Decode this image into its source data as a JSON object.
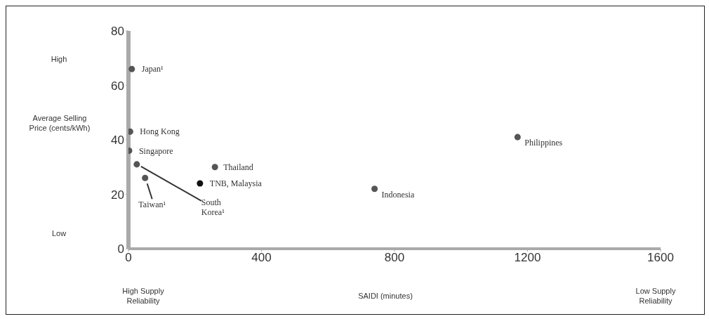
{
  "chart_data": {
    "type": "scatter",
    "xlabel": "SAIDI (minutes)",
    "ylabel": "Average Selling Price (cents/kWh)",
    "x": [
      10,
      5,
      2,
      25,
      50,
      260,
      215,
      740,
      1170
    ],
    "values": [
      66,
      43,
      36,
      31,
      26,
      30,
      24,
      22,
      41
    ],
    "colors": [
      "#555555",
      "#555555",
      "#555555",
      "#555555",
      "#555555",
      "#555555",
      "#111111",
      "#555555",
      "#555555"
    ],
    "xlim": [
      0,
      1600
    ],
    "xticks": [
      0,
      400,
      800,
      1200,
      1600
    ],
    "ylim": [
      0,
      80
    ],
    "yticks": [
      0,
      20,
      40,
      60,
      80
    ],
    "grid": false,
    "legend": false,
    "marker": "circle",
    "annotations": [
      {
        "text": "Japan¹",
        "x": 10,
        "y": 66
      },
      {
        "text": "Hong Kong",
        "x": 5,
        "y": 43
      },
      {
        "text": "Singapore",
        "x": 2,
        "y": 36
      },
      {
        "text": "South Korea¹",
        "x": 25,
        "y": 31
      },
      {
        "text": "Taiwan¹",
        "x": 50,
        "y": 26
      },
      {
        "text": "Thailand",
        "x": 260,
        "y": 30
      },
      {
        "text": "TNB, Malaysia",
        "x": 215,
        "y": 24
      },
      {
        "text": "Indonesia",
        "x": 740,
        "y": 22
      },
      {
        "text": "Philippines",
        "x": 1170,
        "y": 41
      },
      "High",
      "Low",
      "High Supply Reliability",
      "Low Supply Reliability"
    ]
  }
}
